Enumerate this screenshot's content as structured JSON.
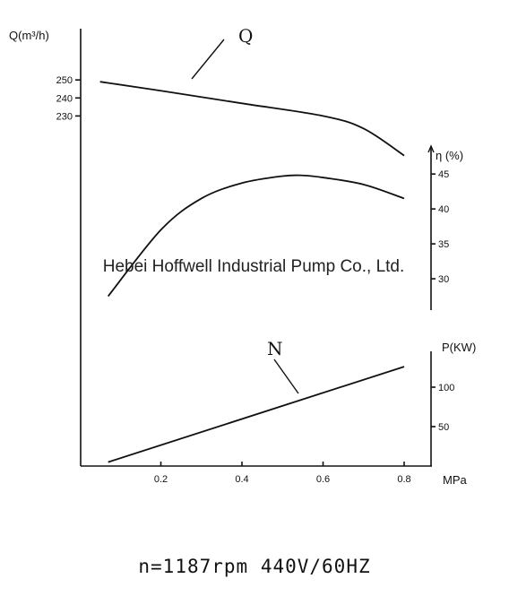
{
  "chart_data": {
    "type": "line",
    "xlabel": "MPa",
    "x_ticks": [
      "0.2",
      "0.4",
      "0.6",
      "0.8"
    ],
    "xlim": [
      0.0,
      0.85
    ],
    "axes": {
      "Q": {
        "label": "Q(m³/h)",
        "ticks": [
          230,
          240,
          250
        ],
        "range": [
          170,
          268
        ]
      },
      "eta": {
        "label": "η (%)",
        "ticks": [
          30,
          35,
          40,
          45
        ],
        "range": [
          25,
          49
        ]
      },
      "P": {
        "label": "P(KW)",
        "ticks": [
          50,
          100
        ],
        "range": [
          0,
          150
        ]
      }
    },
    "series": [
      {
        "name": "Q",
        "axis": "Q",
        "x": [
          0.05,
          0.2,
          0.4,
          0.6,
          0.7,
          0.8
        ],
        "y": [
          249,
          244,
          237,
          230,
          223,
          208
        ]
      },
      {
        "name": "η",
        "axis": "eta",
        "x": [
          0.07,
          0.2,
          0.3,
          0.4,
          0.5,
          0.55,
          0.6,
          0.7,
          0.8
        ],
        "y": [
          27.5,
          37,
          41.5,
          43.7,
          44.7,
          44.8,
          44.5,
          43.5,
          41.5
        ]
      },
      {
        "name": "N",
        "axis": "P",
        "x": [
          0.07,
          0.8
        ],
        "y": [
          5,
          126
        ]
      }
    ],
    "grid": false,
    "legend": "none"
  },
  "watermark": "Hebei Hoffwell Industrial Pump Co., Ltd.",
  "footer": "n=1187rpm  440V/60HZ"
}
